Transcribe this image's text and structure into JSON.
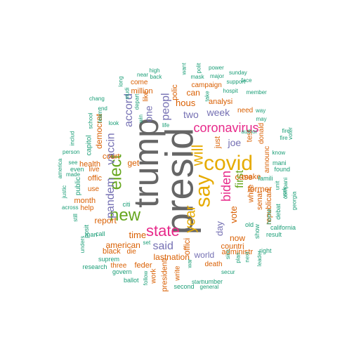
{
  "palette": {
    "teal": "#1b9e77",
    "orange": "#d95f02",
    "purple": "#7570b3",
    "magenta": "#e7298a",
    "green": "#66a61e",
    "mustard": "#e6ab02",
    "brown": "#a6761d",
    "gray": "#666666"
  },
  "words": [
    {
      "text": "presid",
      "color": "gray"
    },
    {
      "text": "trump",
      "color": "gray"
    },
    {
      "text": "covid",
      "color": "mustard"
    },
    {
      "text": "say",
      "color": "mustard"
    },
    {
      "text": "new",
      "color": "green"
    },
    {
      "text": "elect",
      "color": "green"
    },
    {
      "text": "will",
      "color": "mustard"
    },
    {
      "text": "state",
      "color": "magenta"
    },
    {
      "text": "year",
      "color": "mustard"
    },
    {
      "text": "coronavirus",
      "color": "magenta"
    },
    {
      "text": "biden",
      "color": "magenta"
    },
    {
      "text": "peopl",
      "color": "purple"
    },
    {
      "text": "accord",
      "color": "purple"
    },
    {
      "text": "pandem",
      "color": "purple"
    },
    {
      "text": "vaccin",
      "color": "purple"
    },
    {
      "text": "said",
      "color": "purple"
    },
    {
      "text": "first",
      "color": "green"
    },
    {
      "text": "joe",
      "color": "purple"
    },
    {
      "text": "week",
      "color": "purple"
    },
    {
      "text": "two",
      "color": "purple"
    },
    {
      "text": "one",
      "color": "purple"
    },
    {
      "text": "hous",
      "color": "orange"
    },
    {
      "text": "day",
      "color": "purple"
    },
    {
      "text": "time",
      "color": "orange"
    },
    {
      "text": "vote",
      "color": "orange"
    },
    {
      "text": "american",
      "color": "orange"
    },
    {
      "text": "get",
      "color": "orange"
    },
    {
      "text": "report",
      "color": "orange"
    },
    {
      "text": "former",
      "color": "orange"
    },
    {
      "text": "can",
      "color": "orange"
    },
    {
      "text": "now",
      "color": "orange"
    },
    {
      "text": "case",
      "color": "orange"
    },
    {
      "text": "democrat",
      "color": "orange"
    },
    {
      "text": "world",
      "color": "purple"
    },
    {
      "text": "lastnation",
      "color": "orange"
    },
    {
      "text": "offici",
      "color": "orange"
    },
    {
      "text": "just",
      "color": "orange"
    },
    {
      "text": "test",
      "color": "orange"
    },
    {
      "text": "analysi",
      "color": "orange"
    },
    {
      "text": "white",
      "color": "orange"
    },
    {
      "text": "million",
      "color": "orange"
    },
    {
      "text": "health",
      "color": "orange"
    },
    {
      "text": "month",
      "color": "orange"
    },
    {
      "text": "administr",
      "color": "orange"
    },
    {
      "text": "countri",
      "color": "orange"
    },
    {
      "text": "republican",
      "color": "orange"
    },
    {
      "text": "make",
      "color": "orange"
    },
    {
      "text": "offic",
      "color": "orange"
    },
    {
      "text": "polic",
      "color": "orange"
    },
    {
      "text": "black",
      "color": "orange"
    },
    {
      "text": "feder",
      "color": "orange"
    },
    {
      "text": "presidenti",
      "color": "orange"
    },
    {
      "text": "court",
      "color": "orange"
    },
    {
      "text": "senat",
      "color": "orange"
    },
    {
      "text": "help",
      "color": "orange"
    },
    {
      "text": "announc",
      "color": "orange"
    },
    {
      "text": "use",
      "color": "orange"
    },
    {
      "text": "live",
      "color": "orange"
    },
    {
      "text": "die",
      "color": "orange"
    },
    {
      "text": "like",
      "color": "orange"
    },
    {
      "text": "come",
      "color": "orange"
    },
    {
      "text": "campaign",
      "color": "orange"
    },
    {
      "text": "need",
      "color": "orange"
    },
    {
      "text": "donald",
      "color": "orange"
    },
    {
      "text": "work",
      "color": "orange"
    },
    {
      "text": "write",
      "color": "orange"
    },
    {
      "text": "death",
      "color": "orange"
    },
    {
      "text": "three",
      "color": "orange"
    },
    {
      "text": "capitol",
      "color": "teal"
    },
    {
      "text": "public",
      "color": "teal"
    },
    {
      "text": "even",
      "color": "teal"
    },
    {
      "text": "found",
      "color": "teal"
    },
    {
      "text": "famili",
      "color": "teal"
    },
    {
      "text": "home",
      "color": "teal"
    },
    {
      "text": "debat",
      "color": "teal"
    },
    {
      "text": "mani",
      "color": "teal"
    },
    {
      "text": "show",
      "color": "teal"
    },
    {
      "text": "old",
      "color": "teal"
    },
    {
      "text": "call",
      "color": "teal"
    },
    {
      "text": "citi",
      "color": "teal"
    },
    {
      "text": "posit",
      "color": "teal"
    },
    {
      "text": "man",
      "color": "teal"
    },
    {
      "text": "suprem",
      "color": "teal"
    },
    {
      "text": "govern",
      "color": "teal"
    },
    {
      "text": "research",
      "color": "teal"
    },
    {
      "text": "ballot",
      "color": "teal"
    },
    {
      "text": "follow",
      "color": "teal"
    },
    {
      "text": "second",
      "color": "teal"
    },
    {
      "text": "number",
      "color": "teal"
    },
    {
      "text": "general",
      "color": "teal"
    },
    {
      "text": "start",
      "color": "teal"
    },
    {
      "text": "secur",
      "color": "teal"
    },
    {
      "text": "leader",
      "color": "teal"
    },
    {
      "text": "right",
      "color": "teal"
    },
    {
      "text": "result",
      "color": "teal"
    },
    {
      "text": "california",
      "color": "teal"
    },
    {
      "text": "georgia",
      "color": "teal"
    },
    {
      "text": "compani",
      "color": "teal"
    },
    {
      "text": "fire",
      "color": "teal"
    },
    {
      "text": "voter",
      "color": "teal"
    },
    {
      "text": "york",
      "color": "teal"
    },
    {
      "text": "know",
      "color": "teal"
    },
    {
      "text": "unit",
      "color": "teal"
    },
    {
      "text": "plan",
      "color": "teal"
    },
    {
      "text": "next",
      "color": "teal"
    },
    {
      "text": "sinc",
      "color": "teal"
    },
    {
      "text": "author",
      "color": "teal"
    },
    {
      "text": "way",
      "color": "teal"
    },
    {
      "text": "may",
      "color": "teal"
    },
    {
      "text": "member",
      "color": "teal"
    },
    {
      "text": "hospit",
      "color": "teal"
    },
    {
      "text": "face",
      "color": "teal"
    },
    {
      "text": "support",
      "color": "teal"
    },
    {
      "text": "sunday",
      "color": "teal"
    },
    {
      "text": "major",
      "color": "teal"
    },
    {
      "text": "mask",
      "color": "teal"
    },
    {
      "text": "power",
      "color": "teal"
    },
    {
      "text": "polit",
      "color": "teal"
    },
    {
      "text": "want",
      "color": "teal"
    },
    {
      "text": "high",
      "color": "teal"
    },
    {
      "text": "back",
      "color": "teal"
    },
    {
      "text": "near",
      "color": "teal"
    },
    {
      "text": "look",
      "color": "teal"
    },
    {
      "text": "long",
      "color": "teal"
    },
    {
      "text": "studi",
      "color": "teal"
    },
    {
      "text": "depart",
      "color": "teal"
    },
    {
      "text": "win",
      "color": "teal"
    },
    {
      "text": "life",
      "color": "teal"
    },
    {
      "text": "chang",
      "color": "teal"
    },
    {
      "text": "end",
      "color": "teal"
    },
    {
      "text": "team",
      "color": "teal"
    },
    {
      "text": "school",
      "color": "teal"
    },
    {
      "text": "includ",
      "color": "teal"
    },
    {
      "text": "person",
      "color": "teal"
    },
    {
      "text": "america",
      "color": "teal"
    },
    {
      "text": "see",
      "color": "teal"
    },
    {
      "text": "made",
      "color": "teal"
    },
    {
      "text": "justic",
      "color": "teal"
    },
    {
      "text": "across",
      "color": "teal"
    },
    {
      "text": "still",
      "color": "teal"
    },
    {
      "text": "unders",
      "color": "teal"
    },
    {
      "text": "set",
      "color": "teal"
    },
    {
      "text": "war",
      "color": "teal"
    },
    {
      "text": "take",
      "color": "teal"
    },
    {
      "text": "fire",
      "color": "teal"
    }
  ]
}
